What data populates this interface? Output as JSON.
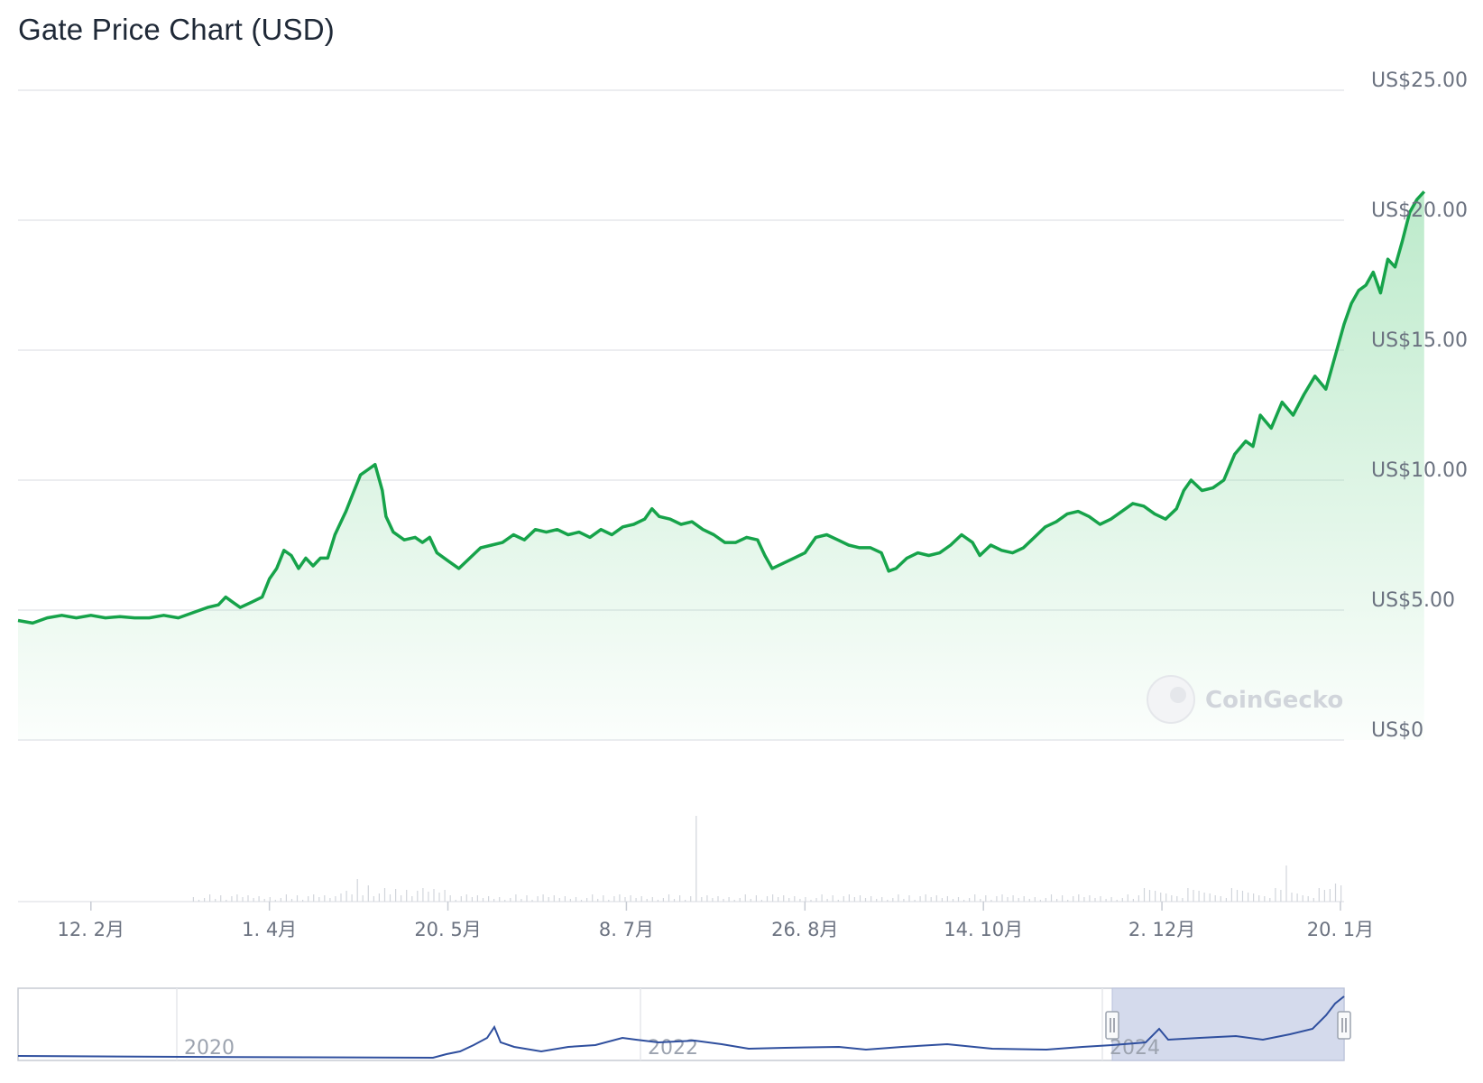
{
  "title": "Gate Price Chart (USD)",
  "watermark": "CoinGecko",
  "colors": {
    "price_line": "#16a34a",
    "area_fill": "#86d9a0",
    "volume_bar": "#d1d5db",
    "navigator_line": "#2f4f9e",
    "navigator_selection": "#cfd6ea",
    "grid": "#e5e7eb"
  },
  "chart_data": {
    "type": "area",
    "title": "Gate Price Chart (USD)",
    "y_ticks": [
      "US$0",
      "US$5.00",
      "US$10.00",
      "US$15.00",
      "US$20.00",
      "US$25.00"
    ],
    "y_tick_values": [
      0,
      5,
      10,
      15,
      20,
      25
    ],
    "ylim": [
      0,
      25
    ],
    "x_ticks": [
      "12. 2月",
      "1. 4月",
      "20. 5月",
      "8. 7月",
      "26. 8月",
      "14. 10月",
      "2. 12月",
      "20. 1月"
    ],
    "x_tick_days": [
      12,
      61,
      110,
      159,
      208,
      257,
      306,
      355
    ],
    "xlim_days": [
      -8,
      356
    ],
    "grid": true,
    "legend": "none",
    "series": [
      {
        "values": [
          [
            -8,
            4.6
          ],
          [
            -4,
            4.5
          ],
          [
            0,
            4.7
          ],
          [
            4,
            4.8
          ],
          [
            8,
            4.7
          ],
          [
            12,
            4.8
          ],
          [
            16,
            4.7
          ],
          [
            20,
            4.75
          ],
          [
            24,
            4.7
          ],
          [
            28,
            4.7
          ],
          [
            32,
            4.8
          ],
          [
            36,
            4.7
          ],
          [
            40,
            4.9
          ],
          [
            44,
            5.1
          ],
          [
            47,
            5.2
          ],
          [
            49,
            5.5
          ],
          [
            51,
            5.3
          ],
          [
            53,
            5.1
          ],
          [
            56,
            5.3
          ],
          [
            59,
            5.5
          ],
          [
            61,
            6.2
          ],
          [
            63,
            6.6
          ],
          [
            65,
            7.3
          ],
          [
            67,
            7.1
          ],
          [
            69,
            6.6
          ],
          [
            71,
            7.0
          ],
          [
            73,
            6.7
          ],
          [
            75,
            7.0
          ],
          [
            77,
            7.0
          ],
          [
            79,
            7.9
          ],
          [
            81,
            8.5
          ],
          [
            82,
            8.8
          ],
          [
            84,
            9.5
          ],
          [
            86,
            10.2
          ],
          [
            88,
            10.4
          ],
          [
            90,
            10.6
          ],
          [
            92,
            9.6
          ],
          [
            93,
            8.6
          ],
          [
            95,
            8.0
          ],
          [
            98,
            7.7
          ],
          [
            101,
            7.8
          ],
          [
            103,
            7.6
          ],
          [
            105,
            7.8
          ],
          [
            107,
            7.2
          ],
          [
            110,
            6.9
          ],
          [
            113,
            6.6
          ],
          [
            116,
            7.0
          ],
          [
            119,
            7.4
          ],
          [
            122,
            7.5
          ],
          [
            125,
            7.6
          ],
          [
            128,
            7.9
          ],
          [
            131,
            7.7
          ],
          [
            134,
            8.1
          ],
          [
            137,
            8.0
          ],
          [
            140,
            8.1
          ],
          [
            143,
            7.9
          ],
          [
            146,
            8.0
          ],
          [
            149,
            7.8
          ],
          [
            152,
            8.1
          ],
          [
            155,
            7.9
          ],
          [
            158,
            8.2
          ],
          [
            161,
            8.3
          ],
          [
            164,
            8.5
          ],
          [
            166,
            8.9
          ],
          [
            168,
            8.6
          ],
          [
            171,
            8.5
          ],
          [
            174,
            8.3
          ],
          [
            177,
            8.4
          ],
          [
            180,
            8.1
          ],
          [
            183,
            7.9
          ],
          [
            186,
            7.6
          ],
          [
            189,
            7.6
          ],
          [
            192,
            7.8
          ],
          [
            195,
            7.7
          ],
          [
            197,
            7.1
          ],
          [
            199,
            6.6
          ],
          [
            202,
            6.8
          ],
          [
            205,
            7.0
          ],
          [
            208,
            7.2
          ],
          [
            211,
            7.8
          ],
          [
            214,
            7.9
          ],
          [
            217,
            7.7
          ],
          [
            220,
            7.5
          ],
          [
            223,
            7.4
          ],
          [
            226,
            7.4
          ],
          [
            229,
            7.2
          ],
          [
            231,
            6.5
          ],
          [
            233,
            6.6
          ],
          [
            236,
            7.0
          ],
          [
            239,
            7.2
          ],
          [
            242,
            7.1
          ],
          [
            245,
            7.2
          ],
          [
            248,
            7.5
          ],
          [
            251,
            7.9
          ],
          [
            254,
            7.6
          ],
          [
            256,
            7.1
          ],
          [
            259,
            7.5
          ],
          [
            262,
            7.3
          ],
          [
            265,
            7.2
          ],
          [
            268,
            7.4
          ],
          [
            271,
            7.8
          ],
          [
            274,
            8.2
          ],
          [
            277,
            8.4
          ],
          [
            280,
            8.7
          ],
          [
            283,
            8.8
          ],
          [
            286,
            8.6
          ],
          [
            289,
            8.3
          ],
          [
            292,
            8.5
          ],
          [
            295,
            8.8
          ],
          [
            298,
            9.1
          ],
          [
            301,
            9.0
          ],
          [
            304,
            8.7
          ],
          [
            307,
            8.5
          ],
          [
            310,
            8.9
          ],
          [
            312,
            9.6
          ],
          [
            314,
            10.0
          ],
          [
            317,
            9.6
          ],
          [
            320,
            9.7
          ],
          [
            323,
            10.0
          ],
          [
            326,
            11.0
          ],
          [
            329,
            11.5
          ],
          [
            331,
            11.3
          ],
          [
            333,
            12.5
          ],
          [
            336,
            12.0
          ],
          [
            339,
            13.0
          ],
          [
            342,
            12.5
          ],
          [
            345,
            13.3
          ],
          [
            348,
            14.0
          ],
          [
            351,
            13.5
          ],
          [
            353,
            14.5
          ],
          [
            356,
            16.0
          ],
          [
            358,
            16.8
          ],
          [
            360,
            17.3
          ],
          [
            362,
            17.5
          ],
          [
            364,
            18.0
          ],
          [
            366,
            17.2
          ],
          [
            368,
            18.5
          ],
          [
            370,
            18.2
          ],
          [
            372,
            19.2
          ],
          [
            374,
            20.3
          ],
          [
            376,
            20.8
          ],
          [
            378,
            21.1
          ]
        ]
      }
    ],
    "volume_note": "relative volume spikes",
    "navigator": {
      "x_ticks": [
        "2020",
        "2022",
        "2024"
      ],
      "selection": "last ~1 year"
    }
  }
}
